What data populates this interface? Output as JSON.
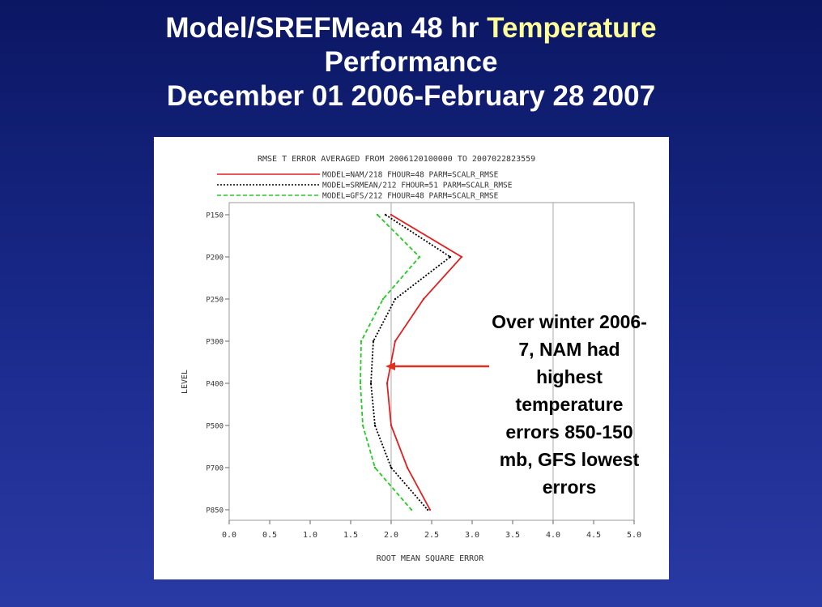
{
  "slide": {
    "title_line1_prefix": "Model/SREFMean 48 hr ",
    "title_line1_highlight": "Temperature",
    "title_line2": "Performance",
    "title_line3": "December 01 2006-February 28 2007",
    "highlight_color": "#ffff99"
  },
  "callout": {
    "text": "Over winter 2006-7, NAM had highest temperature errors 850-150 mb, GFS lowest errors",
    "arrow_color": "#e03020"
  },
  "chart_data": {
    "type": "line",
    "title": "RMSE T ERROR AVERAGED FROM 2006120100000 TO 2007022823559",
    "xlabel": "ROOT MEAN SQUARE ERROR",
    "ylabel": "LEVEL",
    "xlim": [
      0.0,
      5.0
    ],
    "x_ticks": [
      "0.0",
      "0.5",
      "1.0",
      "1.5",
      "2.0",
      "2.5",
      "3.0",
      "3.5",
      "4.0",
      "4.5",
      "5.0"
    ],
    "levels": [
      "P150",
      "P200",
      "P250",
      "P300",
      "P400",
      "P500",
      "P700",
      "P850"
    ],
    "vertical_gridlines_at": [
      2.0,
      4.0
    ],
    "series": [
      {
        "name": "MODEL=NAM/218 FHOUR=48 PARM=SCALR_RMSE",
        "color": "#e02020",
        "dash": "solid",
        "values": [
          2.0,
          2.87,
          2.4,
          2.05,
          1.95,
          2.0,
          2.2,
          2.48
        ]
      },
      {
        "name": "MODEL=SRMEAN/212 FHOUR=51 PARM=SCALR_RMSE",
        "color": "#000000",
        "dash": "dotted",
        "values": [
          1.93,
          2.73,
          2.05,
          1.78,
          1.75,
          1.8,
          2.0,
          2.45
        ]
      },
      {
        "name": "MODEL=GFS/212 FHOUR=48 PARM=SCALR_RMSE",
        "color": "#22cc22",
        "dash": "dashed",
        "values": [
          1.83,
          2.35,
          1.9,
          1.63,
          1.62,
          1.65,
          1.8,
          2.25
        ]
      }
    ]
  }
}
